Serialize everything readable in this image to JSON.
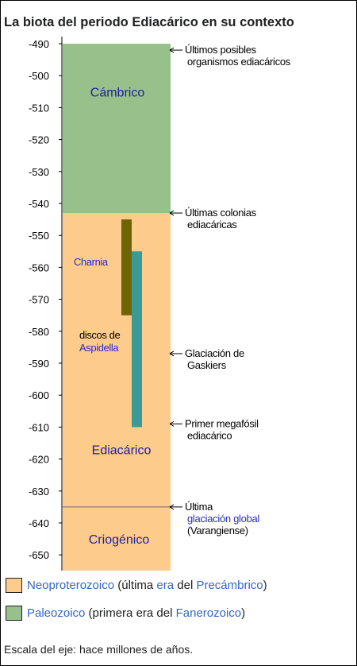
{
  "title": "La biota del periodo Ediacárico en su contexto",
  "colors": {
    "cambrian": "#98c08b",
    "ediacaran": "#fdcb8b",
    "charnia": "#6e6403",
    "aspidella": "#3a9a96",
    "period_text": "#1e1ea0"
  },
  "axis": {
    "ylim": [
      -490,
      -655
    ],
    "ticks": [
      "-490",
      "-500",
      "-510",
      "-520",
      "-530",
      "-540",
      "-550",
      "-560",
      "-570",
      "-580",
      "-590",
      "-600",
      "-610",
      "-620",
      "-630",
      "-640",
      "-650"
    ]
  },
  "periods": [
    {
      "name": "Cámbrico",
      "start": -490,
      "end": -543,
      "color": "#98c08b",
      "label_y": -505
    },
    {
      "name": "Ediacárico",
      "start": -543,
      "end": -635,
      "color": "#fdcb8b",
      "label_y": -617
    },
    {
      "name": "Criogénico",
      "start": -635,
      "end": -655,
      "color": "#fdcb8b",
      "label_y": -645
    }
  ],
  "biota": [
    {
      "name": "Charnia",
      "start": -545,
      "end": -575,
      "color": "#6e6403"
    },
    {
      "name": "Aspidella",
      "start": -555,
      "end": -610,
      "color": "#3a9a96"
    }
  ],
  "biota_labels": {
    "charnia": "Charnia",
    "aspidella_line1": "discos de",
    "aspidella_line2": "Aspidella"
  },
  "events": [
    {
      "at": -492,
      "lines": [
        "Últimos posibles",
        "organismos ediacáricos"
      ]
    },
    {
      "at": -543,
      "lines": [
        "Últimas colonias",
        "ediacáricas"
      ]
    },
    {
      "at": -587,
      "lines": [
        "Glaciación de",
        "Gaskiers"
      ]
    },
    {
      "at": -609,
      "lines": [
        "Primer megafósil",
        "ediacárico"
      ]
    },
    {
      "at": -635,
      "lines": [
        "Última",
        "glaciación global",
        "(Varangiense)"
      ],
      "link_line": 1
    }
  ],
  "legend": [
    {
      "color": "#fdcb8b",
      "parts": [
        [
          "Neoproterozoico",
          true
        ],
        [
          " (última ",
          false
        ],
        [
          "era",
          true
        ],
        [
          " del ",
          false
        ],
        [
          "Precámbrico",
          true
        ],
        [
          ")",
          false
        ]
      ]
    },
    {
      "color": "#98c08b",
      "parts": [
        [
          "Paleozoico",
          true
        ],
        [
          " (primera era del ",
          false
        ],
        [
          "Fanerozoico",
          true
        ],
        [
          ")",
          false
        ]
      ]
    }
  ],
  "footnote": "Escala del eje: hace millones de años."
}
